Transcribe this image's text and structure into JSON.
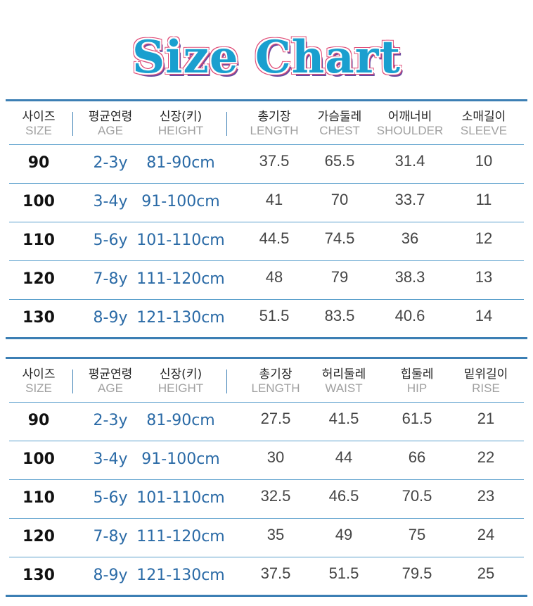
{
  "title": "Size Chart",
  "colors": {
    "title": "#1a9fcf",
    "title_outline": "#e0507a",
    "rule": "#3c7fb4",
    "accent_text": "#2a6aa6"
  },
  "tables": [
    {
      "headers": [
        {
          "ko": "사이즈",
          "en": "SIZE"
        },
        {
          "ko": "평균연령",
          "en": "AGE"
        },
        {
          "ko": "신장(키)",
          "en": "HEIGHT"
        },
        {
          "ko": "총기장",
          "en": "LENGTH"
        },
        {
          "ko": "가슴둘레",
          "en": "CHEST"
        },
        {
          "ko": "어깨너비",
          "en": "SHOULDER"
        },
        {
          "ko": "소매길이",
          "en": "SLEEVE"
        }
      ],
      "rows": [
        [
          "90",
          "2-3y",
          "81-90cm",
          "37.5",
          "65.5",
          "31.4",
          "10"
        ],
        [
          "100",
          "3-4y",
          "91-100cm",
          "41",
          "70",
          "33.7",
          "11"
        ],
        [
          "110",
          "5-6y",
          "101-110cm",
          "44.5",
          "74.5",
          "36",
          "12"
        ],
        [
          "120",
          "7-8y",
          "111-120cm",
          "48",
          "79",
          "38.3",
          "13"
        ],
        [
          "130",
          "8-9y",
          "121-130cm",
          "51.5",
          "83.5",
          "40.6",
          "14"
        ]
      ]
    },
    {
      "headers": [
        {
          "ko": "사이즈",
          "en": "SIZE"
        },
        {
          "ko": "평균연령",
          "en": "AGE"
        },
        {
          "ko": "신장(키)",
          "en": "HEIGHT"
        },
        {
          "ko": "총기장",
          "en": "LENGTH"
        },
        {
          "ko": "허리둘레",
          "en": "WAIST"
        },
        {
          "ko": "힙둘레",
          "en": "HIP"
        },
        {
          "ko": "밑위길이",
          "en": "RISE"
        }
      ],
      "rows": [
        [
          "90",
          "2-3y",
          "81-90cm",
          "27.5",
          "41.5",
          "61.5",
          "21"
        ],
        [
          "100",
          "3-4y",
          "91-100cm",
          "30",
          "44",
          "66",
          "22"
        ],
        [
          "110",
          "5-6y",
          "101-110cm",
          "32.5",
          "46.5",
          "70.5",
          "23"
        ],
        [
          "120",
          "7-8y",
          "111-120cm",
          "35",
          "49",
          "75",
          "24"
        ],
        [
          "130",
          "8-9y",
          "121-130cm",
          "37.5",
          "51.5",
          "79.5",
          "25"
        ]
      ]
    }
  ]
}
